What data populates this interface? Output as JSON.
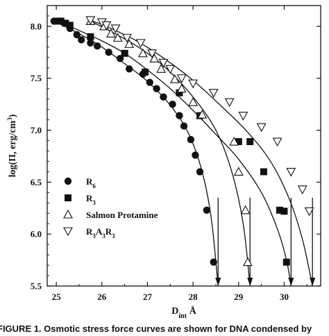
{
  "chart_data": {
    "type": "scatter",
    "xlabel_main": "D",
    "xlabel_sub": "int",
    "xlabel_unit": " Å",
    "ylabel": "log(Π, erg/cm",
    "ylabel_sup": "3",
    "ylabel_end": ")",
    "xlim": [
      24.8,
      30.8
    ],
    "ylim": [
      5.5,
      8.2
    ],
    "xticks": [
      "25",
      "26",
      "27",
      "28",
      "29",
      "30"
    ],
    "xtick_values": [
      25,
      26,
      27,
      28,
      29,
      30
    ],
    "yticks": [
      "5.5",
      "6.0",
      "6.5",
      "7.0",
      "7.5",
      "8.0"
    ],
    "ytick_values": [
      5.5,
      6.0,
      6.5,
      7.0,
      7.5,
      8.0
    ],
    "legend_position": "middle-left",
    "series": [
      {
        "name": "R",
        "name_sub": "6",
        "marker": "circle",
        "color": "#111111",
        "points": [
          [
            24.95,
            8.05
          ],
          [
            25.1,
            8.05
          ],
          [
            25.3,
            7.98
          ],
          [
            25.45,
            7.92
          ],
          [
            25.55,
            7.87
          ],
          [
            25.75,
            7.84
          ],
          [
            25.9,
            7.81
          ],
          [
            26.15,
            7.75
          ],
          [
            26.4,
            7.69
          ],
          [
            26.6,
            7.59
          ],
          [
            26.9,
            7.54
          ],
          [
            27.05,
            7.46
          ],
          [
            27.2,
            7.4
          ],
          [
            27.35,
            7.32
          ],
          [
            27.55,
            7.25
          ],
          [
            27.7,
            7.14
          ],
          [
            27.8,
            7.04
          ],
          [
            27.95,
            6.91
          ],
          [
            28.05,
            6.76
          ],
          [
            28.15,
            6.6
          ],
          [
            28.3,
            6.23
          ],
          [
            28.45,
            5.73
          ]
        ],
        "curve": [
          [
            24.95,
            8.05
          ],
          [
            25.5,
            7.93
          ],
          [
            26.0,
            7.8
          ],
          [
            26.5,
            7.64
          ],
          [
            27.0,
            7.47
          ],
          [
            27.5,
            7.24
          ],
          [
            27.9,
            6.97
          ],
          [
            28.2,
            6.6
          ],
          [
            28.4,
            6.15
          ],
          [
            28.55,
            5.5
          ]
        ],
        "asymptote": 28.55
      },
      {
        "name": "R",
        "name_sub": "3",
        "marker": "square",
        "color": "#111111",
        "points": [
          [
            25.05,
            8.05
          ],
          [
            25.1,
            8.05
          ],
          [
            25.2,
            8.03
          ],
          [
            25.3,
            8.01
          ],
          [
            25.75,
            7.9
          ],
          [
            26.5,
            7.74
          ],
          [
            26.95,
            7.56
          ],
          [
            27.7,
            7.36
          ],
          [
            28.15,
            7.14
          ],
          [
            29.0,
            6.89
          ],
          [
            29.25,
            6.89
          ],
          [
            29.55,
            6.6
          ],
          [
            29.9,
            6.23
          ],
          [
            30.0,
            6.22
          ],
          [
            30.05,
            5.73
          ]
        ],
        "curve": [
          [
            25.05,
            8.05
          ],
          [
            25.5,
            7.96
          ],
          [
            26.0,
            7.86
          ],
          [
            26.5,
            7.74
          ],
          [
            27.0,
            7.58
          ],
          [
            27.5,
            7.4
          ],
          [
            28.0,
            7.19
          ],
          [
            28.5,
            6.96
          ],
          [
            29.0,
            6.72
          ],
          [
            29.5,
            6.4
          ],
          [
            29.85,
            6.05
          ],
          [
            30.05,
            5.75
          ],
          [
            30.15,
            5.5
          ]
        ],
        "asymptote": 30.15
      },
      {
        "name": "Salmon Protamine",
        "marker": "triangle-up",
        "color": "#111111",
        "points": [
          [
            25.75,
            8.05
          ],
          [
            26.05,
            8.0
          ],
          [
            26.2,
            7.93
          ],
          [
            26.35,
            7.89
          ],
          [
            26.6,
            7.83
          ],
          [
            26.9,
            7.74
          ],
          [
            27.15,
            7.69
          ],
          [
            27.3,
            7.59
          ],
          [
            27.6,
            7.49
          ],
          [
            27.75,
            7.4
          ],
          [
            28.0,
            7.27
          ],
          [
            28.2,
            7.15
          ],
          [
            28.9,
            6.89
          ],
          [
            29.0,
            6.6
          ],
          [
            29.15,
            6.23
          ],
          [
            29.2,
            5.73
          ]
        ],
        "curve": [
          [
            25.75,
            8.05
          ],
          [
            26.2,
            7.95
          ],
          [
            26.8,
            7.8
          ],
          [
            27.4,
            7.6
          ],
          [
            28.0,
            7.32
          ],
          [
            28.5,
            7.0
          ],
          [
            28.85,
            6.6
          ],
          [
            29.1,
            6.1
          ],
          [
            29.25,
            5.5
          ]
        ],
        "asymptote": 29.25
      },
      {
        "name": "R",
        "name_sub": "3",
        "name_mid": "A",
        "name_sub2": "3",
        "name_end": "R",
        "name_sub3": "3",
        "marker": "triangle-down",
        "color": "#111111",
        "points": [
          [
            25.75,
            8.06
          ],
          [
            26.0,
            8.04
          ],
          [
            26.1,
            8.01
          ],
          [
            26.3,
            7.98
          ],
          [
            26.55,
            7.89
          ],
          [
            26.85,
            7.84
          ],
          [
            27.1,
            7.74
          ],
          [
            27.35,
            7.65
          ],
          [
            27.5,
            7.59
          ],
          [
            27.75,
            7.5
          ],
          [
            28.0,
            7.45
          ],
          [
            28.45,
            7.36
          ],
          [
            28.8,
            7.27
          ],
          [
            29.1,
            7.14
          ],
          [
            29.5,
            7.03
          ],
          [
            29.85,
            6.89
          ],
          [
            30.15,
            6.6
          ],
          [
            30.4,
            6.43
          ],
          [
            30.55,
            6.22
          ]
        ],
        "curve": [
          [
            25.75,
            8.06
          ],
          [
            26.2,
            7.98
          ],
          [
            26.8,
            7.85
          ],
          [
            27.4,
            7.68
          ],
          [
            28.0,
            7.48
          ],
          [
            28.6,
            7.24
          ],
          [
            29.2,
            6.98
          ],
          [
            29.7,
            6.7
          ],
          [
            30.1,
            6.35
          ],
          [
            30.4,
            5.95
          ],
          [
            30.62,
            5.5
          ]
        ],
        "asymptote": 30.62
      }
    ]
  },
  "caption": {
    "text": "FIGURE 1. Osmotic stress force curves are shown for DNA condensed by"
  }
}
